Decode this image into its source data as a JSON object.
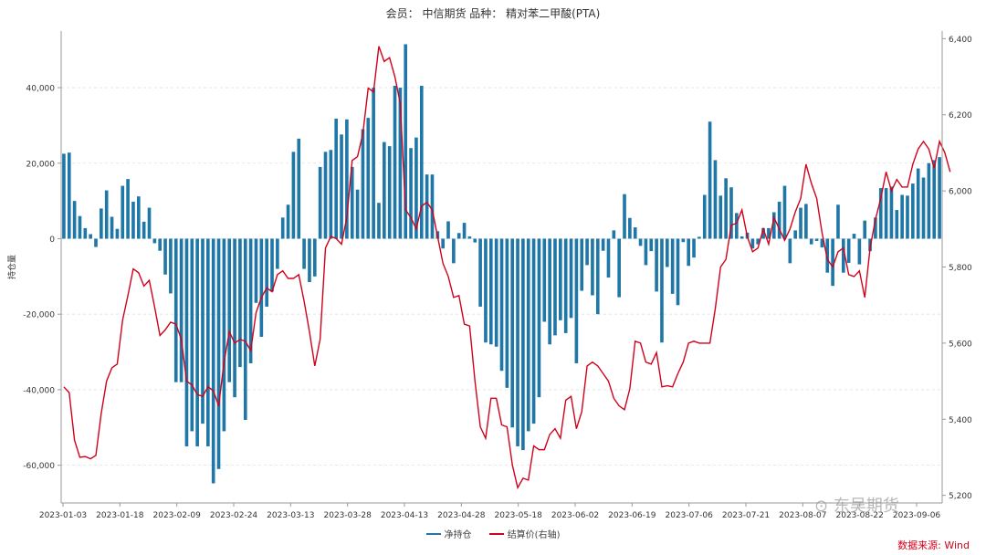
{
  "header": {
    "title": "会员： 中信期货 品种： 精对苯二甲酸(PTA)"
  },
  "legend": {
    "net_label": "净持仓",
    "price_label": "结算价(右轴)"
  },
  "source": "数据来源: Wind",
  "watermark": "东吴期货",
  "colors": {
    "bar": "#1f77a8",
    "line": "#d0021b",
    "grid": "#e0e0e0",
    "axis": "#999999"
  },
  "chart_data": {
    "type": "bar",
    "ylabel": "持仓量",
    "ylim": [
      -70000,
      55000
    ],
    "y2lim": [
      5180,
      6420
    ],
    "yticks": [
      "40,000",
      "20,000",
      "0",
      "-20,000",
      "-40,000",
      "-60,000"
    ],
    "y2ticks": [
      "6,400",
      "6,200",
      "6,000",
      "5,800",
      "5,600",
      "5,400",
      "5,200"
    ],
    "xticks": [
      "2023-01-03",
      "2023-01-18",
      "2023-02-09",
      "2023-02-24",
      "2023-03-13",
      "2023-03-28",
      "2023-04-13",
      "2023-04-28",
      "2023-05-18",
      "2023-06-02",
      "2023-06-19",
      "2023-07-06",
      "2023-07-21",
      "2023-08-07",
      "2023-08-22",
      "2023-09-06"
    ],
    "series": [
      {
        "name": "净持仓",
        "type": "bar",
        "values": [
          22500,
          22800,
          10000,
          6000,
          2800,
          1200,
          -2200,
          8000,
          12800,
          5800,
          2600,
          14000,
          15800,
          9800,
          11200,
          4500,
          8200,
          -1200,
          -3200,
          -9500,
          -14500,
          -38000,
          -38000,
          -55000,
          -51000,
          -55000,
          -49000,
          -55000,
          -64800,
          -61000,
          -51000,
          -38000,
          -42000,
          -34000,
          -48000,
          -33000,
          -17000,
          -26000,
          -18000,
          -14000,
          -8000,
          5600,
          9000,
          23000,
          26500,
          -8000,
          -11500,
          -10000,
          19000,
          23000,
          23500,
          31800,
          27600,
          31600,
          19000,
          13000,
          29000,
          32000,
          40000,
          9500,
          25600,
          24500,
          40500,
          40000,
          51500,
          24000,
          26800,
          40500,
          17000,
          17000,
          2000,
          -2600,
          4600,
          -6500,
          1500,
          4200,
          600,
          -1000,
          -18000,
          -27500,
          -28000,
          -28600,
          -35000,
          -39500,
          -50000,
          -55000,
          -56000,
          -51000,
          -49000,
          -42000,
          -22000,
          -28000,
          -25600,
          -21600,
          -25000,
          -21000,
          -33000,
          -13800,
          -7000,
          -15000,
          -20000,
          -3200,
          -10300,
          2200,
          -15500,
          11800,
          5500,
          3000,
          -1900,
          -7000,
          -3300,
          -14000,
          -27500,
          -7500,
          -14600,
          -17600,
          -900,
          -7200,
          -5000,
          500,
          11600,
          31000,
          20800,
          11400,
          16000,
          13600,
          6800,
          600,
          1600,
          -2600,
          -1500,
          2800,
          2800,
          7000,
          9800,
          14000,
          -6500,
          2200,
          8200,
          9200,
          -1500,
          -600,
          -2300,
          -9000,
          -12500,
          9000,
          -9000,
          -6400,
          1300,
          -6800,
          4800,
          -3300,
          5600,
          13400,
          13400,
          13800,
          7600,
          11600,
          11400,
          14600,
          18600,
          16200,
          20000,
          20800,
          21600
        ]
      },
      {
        "name": "结算价(右轴)",
        "type": "line",
        "values": [
          5485,
          5470,
          5345,
          5300,
          5302,
          5296,
          5305,
          5415,
          5500,
          5535,
          5545,
          5660,
          5725,
          5795,
          5785,
          5750,
          5765,
          5695,
          5620,
          5635,
          5655,
          5650,
          5610,
          5500,
          5490,
          5465,
          5460,
          5485,
          5475,
          5435,
          5550,
          5630,
          5600,
          5610,
          5605,
          5580,
          5680,
          5720,
          5745,
          5735,
          5780,
          5790,
          5770,
          5770,
          5780,
          5710,
          5630,
          5540,
          5610,
          5850,
          5880,
          5875,
          5860,
          5930,
          6080,
          6090,
          6150,
          6270,
          6260,
          6380,
          6340,
          6350,
          6300,
          6230,
          5950,
          5930,
          5900,
          5960,
          5970,
          5950,
          5880,
          5810,
          5775,
          5720,
          5725,
          5650,
          5645,
          5500,
          5380,
          5350,
          5455,
          5455,
          5385,
          5380,
          5280,
          5220,
          5245,
          5240,
          5330,
          5320,
          5320,
          5360,
          5375,
          5350,
          5450,
          5460,
          5375,
          5420,
          5540,
          5550,
          5540,
          5520,
          5500,
          5455,
          5435,
          5425,
          5480,
          5605,
          5600,
          5550,
          5545,
          5575,
          5485,
          5488,
          5485,
          5520,
          5550,
          5600,
          5605,
          5600,
          5600,
          5600,
          5690,
          5800,
          5820,
          5910,
          5915,
          5950,
          5880,
          5840,
          5850,
          5900,
          5860,
          5930,
          5900,
          5870,
          5900,
          5945,
          5980,
          6070,
          6020,
          5980,
          5890,
          5820,
          5800,
          5840,
          5850,
          5780,
          5775,
          5790,
          5720,
          5850,
          5925,
          5980,
          6050,
          6000,
          6030,
          6010,
          6010,
          6070,
          6110,
          6130,
          6110,
          6060,
          6130,
          6100,
          6050
        ]
      }
    ]
  }
}
